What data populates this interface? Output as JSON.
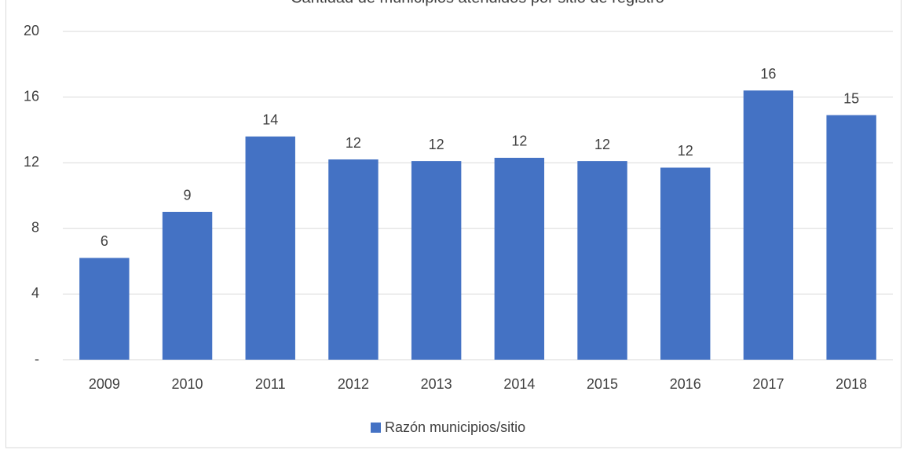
{
  "chart_data": {
    "type": "bar",
    "title": "Cantidad de municipios atendidos por sitio de registro",
    "categories": [
      "2009",
      "2010",
      "2011",
      "2012",
      "2013",
      "2014",
      "2015",
      "2016",
      "2017",
      "2018"
    ],
    "series": [
      {
        "name": "Razón municipios/sitio",
        "color": "#4472c4",
        "values": [
          6.2,
          9.0,
          13.6,
          12.2,
          12.1,
          12.3,
          12.1,
          11.7,
          16.4,
          14.9
        ],
        "value_labels": [
          "6",
          "9",
          "14",
          "12",
          "12",
          "12",
          "12",
          "12",
          "16",
          "15"
        ]
      }
    ],
    "ylim": [
      0,
      20
    ],
    "yticks": [
      {
        "value": 0,
        "label": "-"
      },
      4,
      8,
      12,
      16,
      20
    ],
    "grid": true,
    "legend": "bottom"
  }
}
